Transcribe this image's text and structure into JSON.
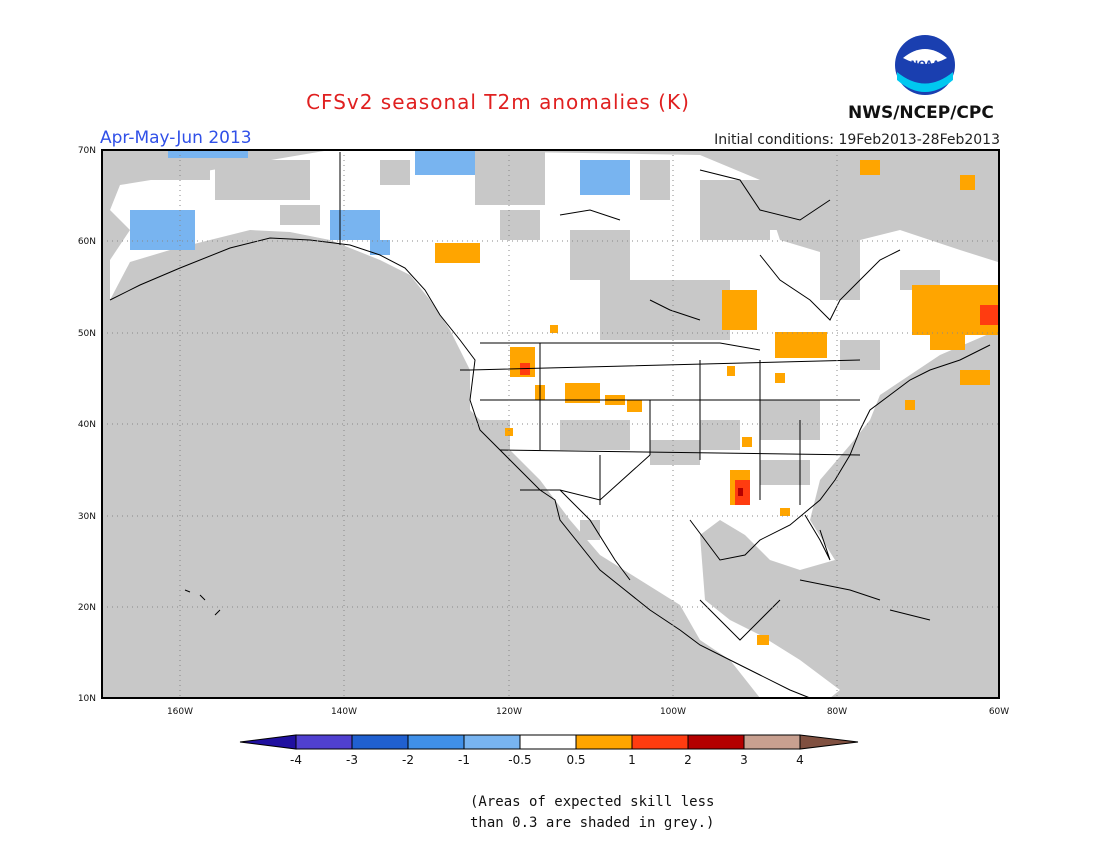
{
  "header": {
    "title": "CFSv2 seasonal T2m anomalies (K)",
    "season": "Apr-May-Jun 2013",
    "initial_conditions": "Initial conditions: 19Feb2013-28Feb2013",
    "agency": "NWS/NCEP/CPC",
    "logo_text": "NOAA"
  },
  "map": {
    "lat_labels": [
      "70N",
      "60N",
      "50N",
      "40N",
      "30N",
      "20N",
      "10N"
    ],
    "lon_labels": [
      "160W",
      "140W",
      "120W",
      "100W",
      "80W",
      "60W"
    ],
    "colors": {
      "grey_low_skill": "#c8c8c8",
      "land": "#ffffff",
      "ocean": "#c8c8c8",
      "warm_0_5_1": "#ffa500",
      "warm_1_2": "#ff3c10",
      "warm_2_3": "#b40000",
      "cool_neg1_neg0_5": "#78b4f0"
    }
  },
  "colorbar": {
    "tick_labels": [
      "-4",
      "-3",
      "-2",
      "-1",
      "-0.5",
      "0.5",
      "1",
      "2",
      "3",
      "4"
    ],
    "colors": [
      "#2010a0",
      "#5040d0",
      "#2060d0",
      "#4090e8",
      "#78b4f0",
      "#ffffff",
      "#ffa500",
      "#ff3c10",
      "#b40000",
      "#c8a090",
      "#805040"
    ]
  },
  "footnote": {
    "line1": "(Areas of expected skill less",
    "line2": "than 0.3 are shaded in grey.)"
  }
}
